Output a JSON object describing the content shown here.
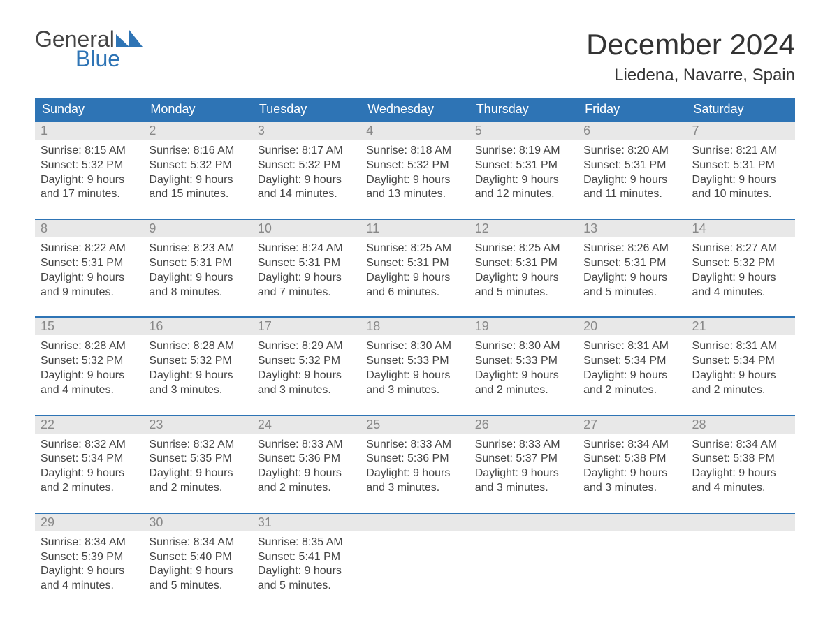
{
  "logo": {
    "line1": "General",
    "line2": "Blue"
  },
  "title": "December 2024",
  "location": "Liedena, Navarre, Spain",
  "colors": {
    "headerBlue": "#2e74b5",
    "dayNumBg": "#e8e8e8",
    "dayNumText": "#888888",
    "bodyText": "#444444",
    "background": "#ffffff"
  },
  "fonts": {
    "title_pt": 42,
    "location_pt": 24,
    "dow_pt": 18,
    "daynum_pt": 18,
    "body_pt": 16
  },
  "dow": [
    "Sunday",
    "Monday",
    "Tuesday",
    "Wednesday",
    "Thursday",
    "Friday",
    "Saturday"
  ],
  "weeks": [
    [
      {
        "n": "1",
        "sr": "Sunrise: 8:15 AM",
        "ss": "Sunset: 5:32 PM",
        "d1": "Daylight: 9 hours",
        "d2": "and 17 minutes."
      },
      {
        "n": "2",
        "sr": "Sunrise: 8:16 AM",
        "ss": "Sunset: 5:32 PM",
        "d1": "Daylight: 9 hours",
        "d2": "and 15 minutes."
      },
      {
        "n": "3",
        "sr": "Sunrise: 8:17 AM",
        "ss": "Sunset: 5:32 PM",
        "d1": "Daylight: 9 hours",
        "d2": "and 14 minutes."
      },
      {
        "n": "4",
        "sr": "Sunrise: 8:18 AM",
        "ss": "Sunset: 5:32 PM",
        "d1": "Daylight: 9 hours",
        "d2": "and 13 minutes."
      },
      {
        "n": "5",
        "sr": "Sunrise: 8:19 AM",
        "ss": "Sunset: 5:31 PM",
        "d1": "Daylight: 9 hours",
        "d2": "and 12 minutes."
      },
      {
        "n": "6",
        "sr": "Sunrise: 8:20 AM",
        "ss": "Sunset: 5:31 PM",
        "d1": "Daylight: 9 hours",
        "d2": "and 11 minutes."
      },
      {
        "n": "7",
        "sr": "Sunrise: 8:21 AM",
        "ss": "Sunset: 5:31 PM",
        "d1": "Daylight: 9 hours",
        "d2": "and 10 minutes."
      }
    ],
    [
      {
        "n": "8",
        "sr": "Sunrise: 8:22 AM",
        "ss": "Sunset: 5:31 PM",
        "d1": "Daylight: 9 hours",
        "d2": "and 9 minutes."
      },
      {
        "n": "9",
        "sr": "Sunrise: 8:23 AM",
        "ss": "Sunset: 5:31 PM",
        "d1": "Daylight: 9 hours",
        "d2": "and 8 minutes."
      },
      {
        "n": "10",
        "sr": "Sunrise: 8:24 AM",
        "ss": "Sunset: 5:31 PM",
        "d1": "Daylight: 9 hours",
        "d2": "and 7 minutes."
      },
      {
        "n": "11",
        "sr": "Sunrise: 8:25 AM",
        "ss": "Sunset: 5:31 PM",
        "d1": "Daylight: 9 hours",
        "d2": "and 6 minutes."
      },
      {
        "n": "12",
        "sr": "Sunrise: 8:25 AM",
        "ss": "Sunset: 5:31 PM",
        "d1": "Daylight: 9 hours",
        "d2": "and 5 minutes."
      },
      {
        "n": "13",
        "sr": "Sunrise: 8:26 AM",
        "ss": "Sunset: 5:31 PM",
        "d1": "Daylight: 9 hours",
        "d2": "and 5 minutes."
      },
      {
        "n": "14",
        "sr": "Sunrise: 8:27 AM",
        "ss": "Sunset: 5:32 PM",
        "d1": "Daylight: 9 hours",
        "d2": "and 4 minutes."
      }
    ],
    [
      {
        "n": "15",
        "sr": "Sunrise: 8:28 AM",
        "ss": "Sunset: 5:32 PM",
        "d1": "Daylight: 9 hours",
        "d2": "and 4 minutes."
      },
      {
        "n": "16",
        "sr": "Sunrise: 8:28 AM",
        "ss": "Sunset: 5:32 PM",
        "d1": "Daylight: 9 hours",
        "d2": "and 3 minutes."
      },
      {
        "n": "17",
        "sr": "Sunrise: 8:29 AM",
        "ss": "Sunset: 5:32 PM",
        "d1": "Daylight: 9 hours",
        "d2": "and 3 minutes."
      },
      {
        "n": "18",
        "sr": "Sunrise: 8:30 AM",
        "ss": "Sunset: 5:33 PM",
        "d1": "Daylight: 9 hours",
        "d2": "and 3 minutes."
      },
      {
        "n": "19",
        "sr": "Sunrise: 8:30 AM",
        "ss": "Sunset: 5:33 PM",
        "d1": "Daylight: 9 hours",
        "d2": "and 2 minutes."
      },
      {
        "n": "20",
        "sr": "Sunrise: 8:31 AM",
        "ss": "Sunset: 5:34 PM",
        "d1": "Daylight: 9 hours",
        "d2": "and 2 minutes."
      },
      {
        "n": "21",
        "sr": "Sunrise: 8:31 AM",
        "ss": "Sunset: 5:34 PM",
        "d1": "Daylight: 9 hours",
        "d2": "and 2 minutes."
      }
    ],
    [
      {
        "n": "22",
        "sr": "Sunrise: 8:32 AM",
        "ss": "Sunset: 5:34 PM",
        "d1": "Daylight: 9 hours",
        "d2": "and 2 minutes."
      },
      {
        "n": "23",
        "sr": "Sunrise: 8:32 AM",
        "ss": "Sunset: 5:35 PM",
        "d1": "Daylight: 9 hours",
        "d2": "and 2 minutes."
      },
      {
        "n": "24",
        "sr": "Sunrise: 8:33 AM",
        "ss": "Sunset: 5:36 PM",
        "d1": "Daylight: 9 hours",
        "d2": "and 2 minutes."
      },
      {
        "n": "25",
        "sr": "Sunrise: 8:33 AM",
        "ss": "Sunset: 5:36 PM",
        "d1": "Daylight: 9 hours",
        "d2": "and 3 minutes."
      },
      {
        "n": "26",
        "sr": "Sunrise: 8:33 AM",
        "ss": "Sunset: 5:37 PM",
        "d1": "Daylight: 9 hours",
        "d2": "and 3 minutes."
      },
      {
        "n": "27",
        "sr": "Sunrise: 8:34 AM",
        "ss": "Sunset: 5:38 PM",
        "d1": "Daylight: 9 hours",
        "d2": "and 3 minutes."
      },
      {
        "n": "28",
        "sr": "Sunrise: 8:34 AM",
        "ss": "Sunset: 5:38 PM",
        "d1": "Daylight: 9 hours",
        "d2": "and 4 minutes."
      }
    ],
    [
      {
        "n": "29",
        "sr": "Sunrise: 8:34 AM",
        "ss": "Sunset: 5:39 PM",
        "d1": "Daylight: 9 hours",
        "d2": "and 4 minutes."
      },
      {
        "n": "30",
        "sr": "Sunrise: 8:34 AM",
        "ss": "Sunset: 5:40 PM",
        "d1": "Daylight: 9 hours",
        "d2": "and 5 minutes."
      },
      {
        "n": "31",
        "sr": "Sunrise: 8:35 AM",
        "ss": "Sunset: 5:41 PM",
        "d1": "Daylight: 9 hours",
        "d2": "and 5 minutes."
      },
      null,
      null,
      null,
      null
    ]
  ]
}
